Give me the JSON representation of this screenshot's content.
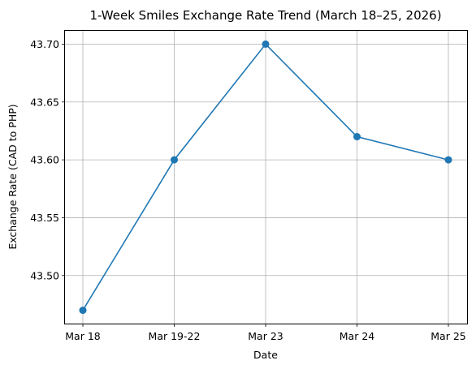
{
  "chart_data": {
    "type": "line",
    "title": "1-Week Smiles Exchange Rate Trend (March 18–25, 2026)",
    "xlabel": "Date",
    "ylabel": "Exchange Rate (CAD to PHP)",
    "categories": [
      "Mar 18",
      "Mar 19-22",
      "Mar 23",
      "Mar 24",
      "Mar 25"
    ],
    "series": [
      {
        "values": [
          43.47,
          43.6,
          43.7,
          43.62,
          43.6
        ],
        "color": "#1f77b4",
        "marker": "circle"
      }
    ],
    "yticks": [
      43.5,
      43.55,
      43.6,
      43.65,
      43.7
    ],
    "ytick_labels": [
      "43.50",
      "43.55",
      "43.60",
      "43.65",
      "43.70"
    ],
    "ylim": [
      43.4585,
      43.7115
    ],
    "grid": true
  }
}
